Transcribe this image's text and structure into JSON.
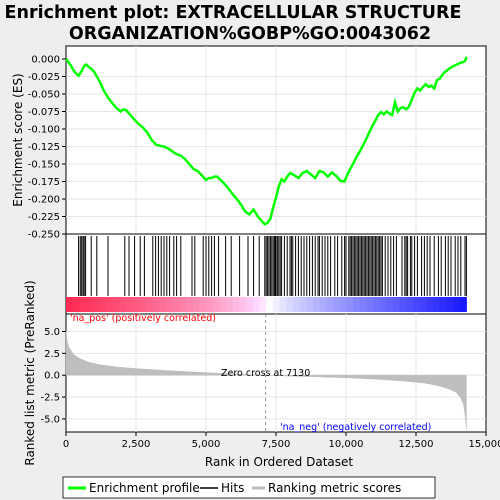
{
  "chart_data": [
    {
      "type": "line",
      "title_line1": "Enrichment plot: EXTRACELLULAR STRUCTURE",
      "title_line2": "ORGANIZATION%GOBP%GO:0043062",
      "ylabel": "Enrichment score (ES)",
      "ylim": [
        -0.25,
        0.0
      ],
      "yticks": [
        "0.000",
        "-0.025",
        "-0.050",
        "-0.075",
        "-0.100",
        "-0.125",
        "-0.150",
        "-0.175",
        "-0.200",
        "-0.225",
        "-0.250"
      ],
      "ytick_values": [
        0.0,
        -0.025,
        -0.05,
        -0.075,
        -0.1,
        -0.125,
        -0.15,
        -0.175,
        -0.2,
        -0.225,
        -0.25
      ],
      "xlim": [
        0,
        15000
      ],
      "series": [
        {
          "name": "Enrichment profile",
          "color": "#00ff00",
          "x": [
            0,
            150,
            300,
            450,
            550,
            650,
            720,
            800,
            900,
            1000,
            1100,
            1200,
            1350,
            1500,
            1650,
            1800,
            1950,
            2050,
            2150,
            2300,
            2450,
            2600,
            2750,
            2900,
            3050,
            3200,
            3350,
            3500,
            3650,
            3800,
            3950,
            4100,
            4250,
            4400,
            4550,
            4700,
            4850,
            5000,
            5100,
            5200,
            5300,
            5400,
            5500,
            5650,
            5800,
            5950,
            6100,
            6250,
            6400,
            6550,
            6700,
            6850,
            7000,
            7100,
            7200,
            7300,
            7400,
            7500,
            7600,
            7700,
            7800,
            7900,
            8000,
            8150,
            8300,
            8450,
            8600,
            8750,
            8900,
            9050,
            9200,
            9350,
            9500,
            9650,
            9800,
            9950,
            10050,
            10150,
            10250,
            10350,
            10450,
            10550,
            10650,
            10750,
            10850,
            10950,
            11050,
            11150,
            11250,
            11350,
            11450,
            11550,
            11650,
            11750,
            11850,
            11950,
            12050,
            12150,
            12250,
            12350,
            12450,
            12550,
            12650,
            12750,
            12850,
            12950,
            13050,
            13150,
            13250,
            13350,
            13450,
            13550,
            13650,
            13750,
            13850,
            13950,
            14050,
            14150,
            14250,
            14300
          ],
          "y": [
            0.0,
            -0.008,
            -0.018,
            -0.024,
            -0.018,
            -0.01,
            -0.008,
            -0.011,
            -0.014,
            -0.018,
            -0.025,
            -0.032,
            -0.045,
            -0.055,
            -0.063,
            -0.07,
            -0.075,
            -0.072,
            -0.073,
            -0.08,
            -0.087,
            -0.093,
            -0.098,
            -0.105,
            -0.115,
            -0.122,
            -0.124,
            -0.125,
            -0.128,
            -0.132,
            -0.136,
            -0.138,
            -0.143,
            -0.15,
            -0.157,
            -0.16,
            -0.166,
            -0.173,
            -0.17,
            -0.17,
            -0.168,
            -0.168,
            -0.172,
            -0.178,
            -0.185,
            -0.193,
            -0.2,
            -0.208,
            -0.218,
            -0.222,
            -0.215,
            -0.225,
            -0.232,
            -0.236,
            -0.234,
            -0.228,
            -0.212,
            -0.198,
            -0.182,
            -0.172,
            -0.175,
            -0.168,
            -0.163,
            -0.166,
            -0.17,
            -0.163,
            -0.16,
            -0.165,
            -0.17,
            -0.16,
            -0.162,
            -0.168,
            -0.162,
            -0.167,
            -0.174,
            -0.175,
            -0.165,
            -0.157,
            -0.15,
            -0.142,
            -0.135,
            -0.128,
            -0.12,
            -0.112,
            -0.103,
            -0.095,
            -0.088,
            -0.08,
            -0.076,
            -0.079,
            -0.075,
            -0.078,
            -0.08,
            -0.062,
            -0.075,
            -0.07,
            -0.069,
            -0.072,
            -0.068,
            -0.058,
            -0.048,
            -0.042,
            -0.045,
            -0.04,
            -0.036,
            -0.04,
            -0.038,
            -0.042,
            -0.03,
            -0.028,
            -0.022,
            -0.018,
            -0.015,
            -0.012,
            -0.01,
            -0.008,
            -0.006,
            -0.005,
            -0.003,
            0.003
          ]
        }
      ]
    },
    {
      "type": "hits",
      "hits_name": "Hits",
      "positions": [
        450,
        510,
        560,
        610,
        650,
        700,
        900,
        1100,
        1500,
        2100,
        2250,
        2450,
        2650,
        2800,
        3100,
        3200,
        3300,
        3400,
        3500,
        3600,
        3700,
        3850,
        3950,
        4100,
        4500,
        4600,
        4900,
        5000,
        5100,
        5200,
        5300,
        5450,
        5700,
        5900,
        6200,
        6500,
        6700,
        6900,
        7100,
        7150,
        7200,
        7250,
        7300,
        7350,
        7400,
        7450,
        7480,
        7500,
        7550,
        7600,
        7650,
        7700,
        7800,
        7900,
        8000,
        8050,
        8100,
        8200,
        8300,
        8400,
        8500,
        8600,
        8700,
        8800,
        8900,
        9000,
        9050,
        9150,
        9250,
        9350,
        9450,
        9600,
        9700,
        9850,
        9950,
        10000,
        10100,
        10150,
        10200,
        10250,
        10300,
        10350,
        10400,
        10450,
        10500,
        10550,
        10600,
        10650,
        10700,
        10750,
        10800,
        10850,
        10900,
        10950,
        11000,
        11050,
        11100,
        11150,
        11200,
        11250,
        11300,
        11400,
        11500,
        11600,
        11700,
        11800,
        12000,
        12100,
        12150,
        12200,
        12300,
        12350,
        12450,
        12550,
        12700,
        12800,
        12900,
        13000,
        13150,
        13300,
        13400,
        13550,
        13650,
        13750,
        13900,
        14000,
        14100,
        14250,
        14300
      ]
    },
    {
      "type": "area",
      "ylabel": "Ranked list metric (PreRanked)",
      "xlabel": "Rank in Ordered Dataset",
      "ylim": [
        -6.5,
        7.0
      ],
      "yticks": [
        "5.0",
        "2.5",
        "0.0",
        "-2.5",
        "-5.0"
      ],
      "ytick_values": [
        5.0,
        2.5,
        0.0,
        -2.5,
        -5.0
      ],
      "xticks": [
        "0",
        "2,500",
        "5,000",
        "7,500",
        "10,000",
        "12,500",
        "15,000"
      ],
      "xtick_values": [
        0,
        2500,
        5000,
        7500,
        10000,
        12500,
        15000
      ],
      "series_name": "Ranking metric scores",
      "fill_color": "#bebebe",
      "x": [
        0,
        50,
        100,
        200,
        300,
        500,
        800,
        1200,
        1800,
        2500,
        3500,
        4500,
        5500,
        6500,
        7130,
        8000,
        9000,
        10000,
        11000,
        12000,
        12800,
        13300,
        13700,
        13950,
        14100,
        14200,
        14250,
        14300
      ],
      "y": [
        5.0,
        3.8,
        3.2,
        2.7,
        2.3,
        1.9,
        1.5,
        1.2,
        0.95,
        0.75,
        0.55,
        0.38,
        0.22,
        0.08,
        0.0,
        -0.1,
        -0.2,
        -0.3,
        -0.45,
        -0.65,
        -0.9,
        -1.2,
        -1.6,
        -2.0,
        -2.6,
        -3.4,
        -4.5,
        -6.2
      ],
      "zero_cross_label": "Zero cross at 7130",
      "zero_cross": 7130,
      "pos_label": "'na_pos' (positively correlated)",
      "neg_label": "'na_neg' (negatively correlated)",
      "pos_color": "#ff0000",
      "neg_color": "#0000ff"
    }
  ],
  "legend": {
    "items": [
      {
        "label": "Enrichment profile",
        "color": "#00ff00"
      },
      {
        "label": "Hits",
        "color": "#000000"
      },
      {
        "label": "Ranking metric scores",
        "color": "#bebebe"
      }
    ]
  }
}
